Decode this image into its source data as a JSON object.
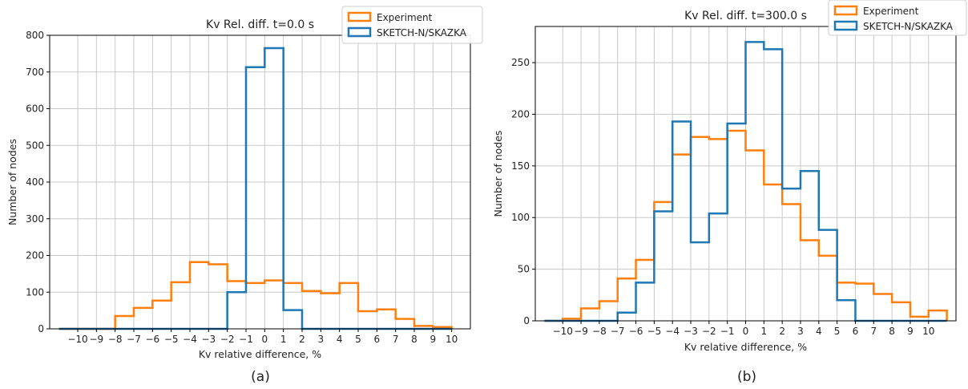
{
  "chart_data": [
    {
      "type": "histogram-step",
      "panel_label": "(a)",
      "title": "Kv Rel. diff. t=0.0 s",
      "xlabel": "Kv relative difference, %",
      "ylabel": "Number of nodes",
      "xlim": [
        -11.5,
        11
      ],
      "ylim": [
        0,
        800
      ],
      "xticks": [
        -10,
        -9,
        -8,
        -7,
        -6,
        -5,
        -4,
        -3,
        -2,
        -1,
        0,
        1,
        2,
        3,
        4,
        5,
        6,
        7,
        8,
        9,
        10
      ],
      "yticks": [
        0,
        100,
        200,
        300,
        400,
        500,
        600,
        700,
        800
      ],
      "grid": true,
      "legend_position": "top-right",
      "bin_edges": [
        -11,
        -10,
        -9,
        -8,
        -7,
        -6,
        -5,
        -4,
        -3,
        -2,
        -1,
        0,
        1,
        2,
        3,
        4,
        5,
        6,
        7,
        8,
        9,
        10
      ],
      "series": [
        {
          "name": "Experiment",
          "color": "#ff7f0e",
          "values": [
            0,
            0,
            0,
            35,
            57,
            77,
            127,
            182,
            176,
            130,
            125,
            132,
            125,
            103,
            97,
            125,
            48,
            53,
            27,
            8,
            5
          ]
        },
        {
          "name": "SKETCH-N/SKAZKA",
          "color": "#1f77b4",
          "values": [
            0,
            0,
            0,
            0,
            0,
            0,
            0,
            0,
            0,
            100,
            713,
            765,
            51,
            0,
            0,
            0,
            0,
            0,
            0,
            0,
            0
          ]
        }
      ]
    },
    {
      "type": "histogram-step",
      "panel_label": "(b)",
      "title": "Kv Rel. diff. t=300.0 s",
      "xlabel": "Kv relative difference, %",
      "ylabel": "Number of nodes",
      "xlim": [
        -11.5,
        11.5
      ],
      "ylim": [
        0,
        285
      ],
      "xticks": [
        -10,
        -9,
        -8,
        -7,
        -6,
        -5,
        -4,
        -3,
        -2,
        -1,
        0,
        1,
        2,
        3,
        4,
        5,
        6,
        7,
        8,
        9,
        10
      ],
      "yticks": [
        0,
        50,
        100,
        150,
        200,
        250
      ],
      "grid": true,
      "legend_position": "top-right",
      "bin_edges": [
        -11,
        -10,
        -9,
        -8,
        -7,
        -6,
        -5,
        -4,
        -3,
        -2,
        -1,
        0,
        1,
        2,
        3,
        4,
        5,
        6,
        7,
        8,
        9,
        10,
        11
      ],
      "series": [
        {
          "name": "Experiment",
          "color": "#ff7f0e",
          "values": [
            0,
            2,
            12,
            19,
            41,
            59,
            115,
            161,
            178,
            176,
            184,
            165,
            132,
            113,
            78,
            63,
            37,
            36,
            26,
            18,
            4,
            10
          ]
        },
        {
          "name": "SKETCH-N/SKAZKA",
          "color": "#1f77b4",
          "values": [
            0,
            0,
            0,
            0,
            8,
            37,
            106,
            193,
            76,
            104,
            191,
            270,
            263,
            128,
            145,
            88,
            20,
            0,
            0,
            0,
            0,
            0
          ]
        }
      ]
    }
  ]
}
